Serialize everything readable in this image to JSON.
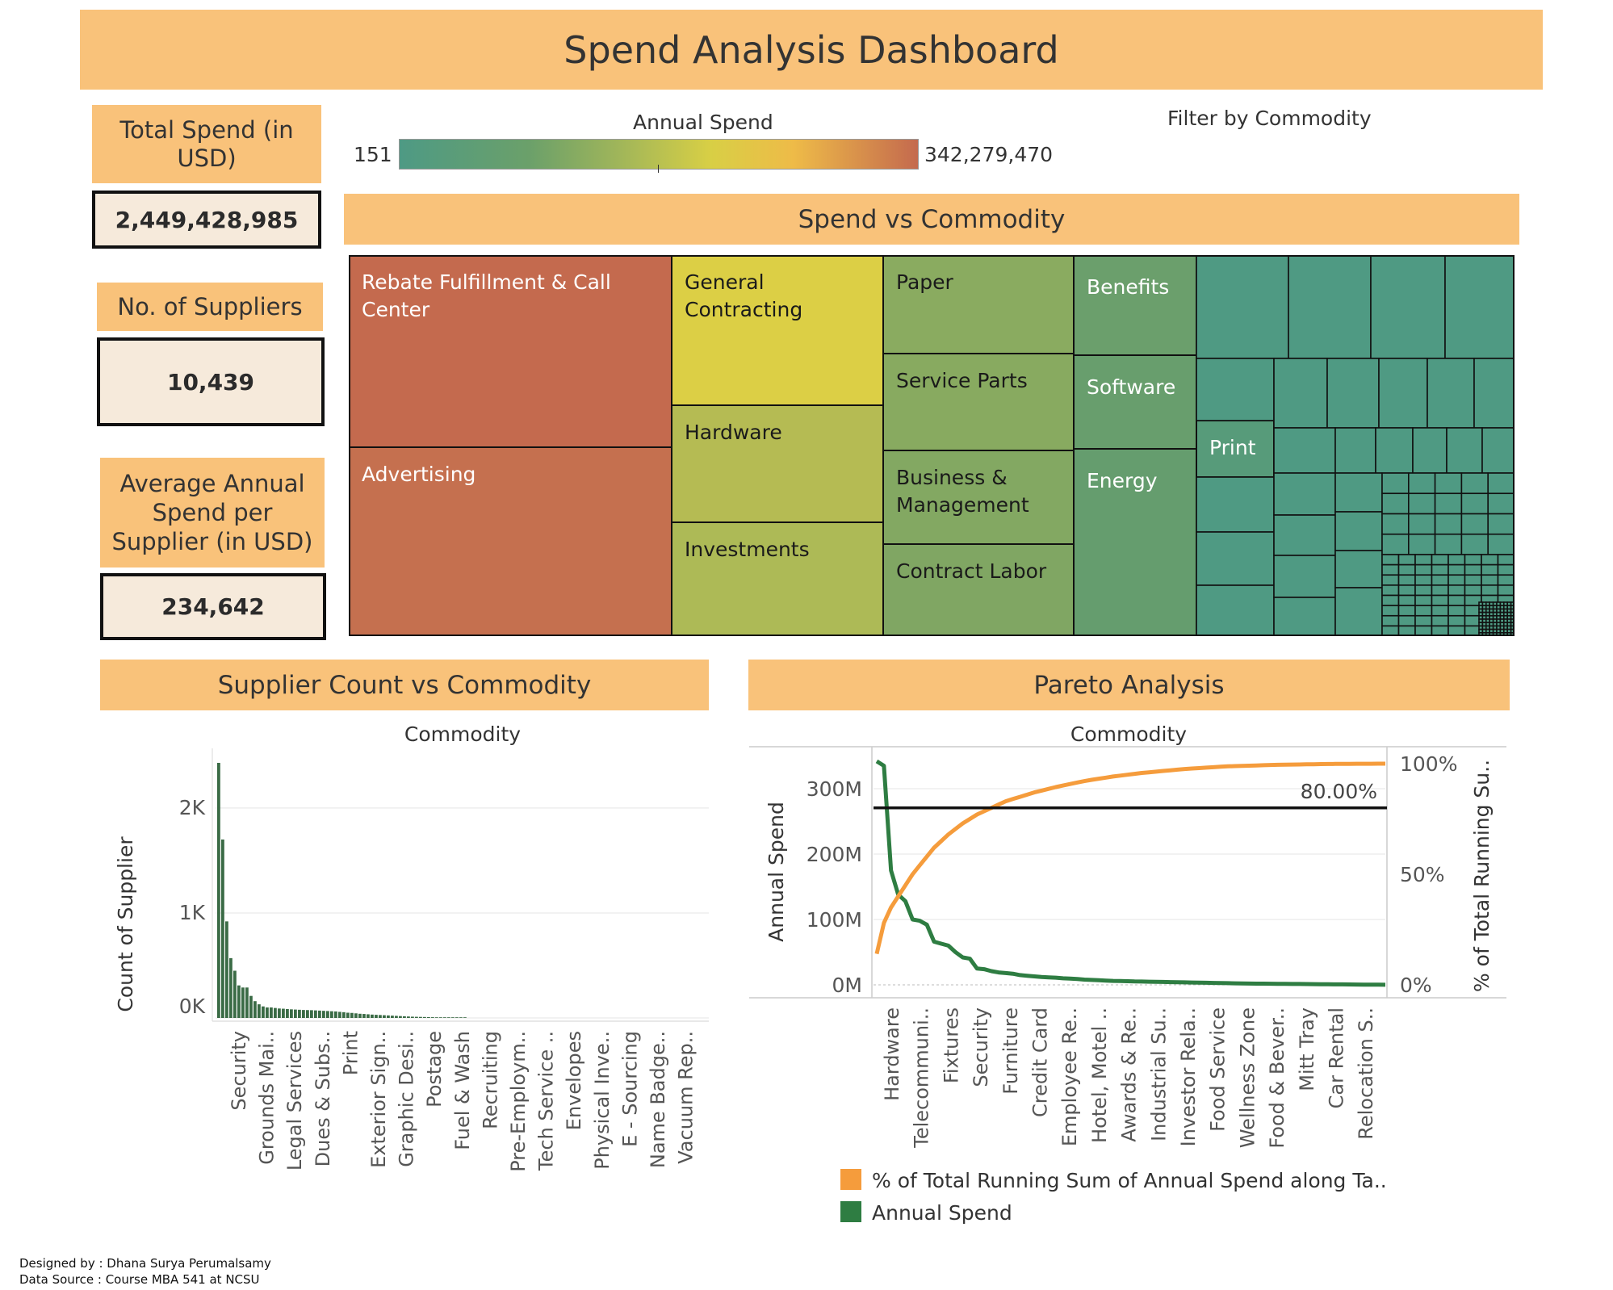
{
  "title": "Spend Analysis Dashboard",
  "kpis": {
    "total_spend_label": "Total Spend (in USD)",
    "total_spend_value": "2,449,428,985",
    "suppliers_label": "No. of Suppliers",
    "suppliers_value": "10,439",
    "avg_label": "Average Annual Spend per Supplier (in USD)",
    "avg_value": "234,642"
  },
  "legend": {
    "title": "Annual Spend",
    "min_label": "151",
    "max_label": "342,279,470",
    "filter_label": "Filter by Commodity",
    "colors": [
      "#4e9a84",
      "#6ba06a",
      "#9fb55a",
      "#d8cf45",
      "#eebb48",
      "#c46a4e"
    ]
  },
  "sections": {
    "treemap_title": "Spend vs Commodity",
    "bar_title": "Supplier Count vs Commodity",
    "pareto_title": "Pareto Analysis"
  },
  "footer": {
    "line1": "Designed by : Dhana Surya Perumalsamy",
    "line2": "Data Source : Course MBA 541 at NCSU"
  },
  "chart_data": [
    {
      "type": "treemap",
      "title": "Spend vs Commodity",
      "color_label": "Annual Spend",
      "labeled_cells": [
        {
          "label": "Rebate Fulfillment & Call Center",
          "color": "#c46a4e"
        },
        {
          "label": "Advertising",
          "color": "#c5704f"
        },
        {
          "label": "General Contracting",
          "color": "#dccf45"
        },
        {
          "label": "Hardware",
          "color": "#b5bb53"
        },
        {
          "label": "Investments",
          "color": "#adba56"
        },
        {
          "label": "Paper",
          "color": "#8aab60"
        },
        {
          "label": "Service Parts",
          "color": "#88aa60"
        },
        {
          "label": "Business & Management",
          "color": "#83a862"
        },
        {
          "label": "Contract Labor",
          "color": "#80a663"
        },
        {
          "label": "Benefits",
          "color": "#6b9f6c"
        },
        {
          "label": "Software",
          "color": "#689e6d"
        },
        {
          "label": "Energy",
          "color": "#659d6e"
        },
        {
          "label": "Print",
          "color": "#579b7a"
        }
      ],
      "unlabeled_color": "#4f9a83"
    },
    {
      "type": "bar",
      "title": "Supplier Count vs Commodity",
      "xlabel": "Commodity",
      "ylabel": "Count of Supplier",
      "yticks": [
        "0K",
        "1K",
        "2K"
      ],
      "ylim": [
        0,
        2500
      ],
      "color": "#3a6b45",
      "tick_categories": [
        "Security",
        "Grounds Mai..",
        "Legal Services",
        "Dues & Subs..",
        "Print",
        "Exterior Sign..",
        "Graphic Desi..",
        "Postage",
        "Fuel & Wash",
        "Recruiting",
        "Pre-Employm..",
        "Tech Service ..",
        "Envelopes",
        "Physical Inve..",
        "E - Sourcing",
        "Name Badge..",
        "Vacuum Rep.."
      ],
      "values": [
        2430,
        1700,
        920,
        570,
        450,
        310,
        290,
        290,
        210,
        160,
        130,
        110,
        100,
        100,
        95,
        90,
        88,
        85,
        82,
        80,
        78,
        76,
        75,
        74,
        72,
        70,
        68,
        66,
        64,
        62,
        58,
        55,
        50,
        48,
        44,
        40,
        38,
        35,
        32,
        30,
        28,
        26,
        24,
        22,
        20,
        18,
        16,
        14,
        12,
        11,
        10,
        9,
        8,
        7,
        6,
        5,
        4,
        3,
        2,
        2,
        1,
        1
      ]
    },
    {
      "type": "line",
      "title": "Pareto Analysis",
      "xlabel": "Commodity",
      "ylabel": "Annual Spend",
      "y2label": "% of Total Running Su..",
      "yticks": [
        "0M",
        "100M",
        "200M",
        "300M"
      ],
      "y2ticks": [
        "0%",
        "50%",
        "100%"
      ],
      "ylim": [
        0,
        340
      ],
      "y2lim": [
        0,
        100
      ],
      "reference_line": {
        "value": 80,
        "label": "80.00%"
      },
      "tick_categories": [
        "Hardware",
        "Telecommuni..",
        "Fixtures",
        "Security",
        "Furniture",
        "Credit Card",
        "Employee Re..",
        "Hotel, Motel ..",
        "Awards & Re..",
        "Industrial Su..",
        "Investor Rela..",
        "Food Service",
        "Wellness Zone",
        "Food & Bever..",
        "Mitt Tray",
        "Car Rental",
        "Relocation S.."
      ],
      "series": [
        {
          "name": "% of Total Running Sum of Annual Spend along Ta..",
          "axis": "right",
          "color": "#f59c3c",
          "values": [
            14,
            28,
            35,
            40,
            45,
            50,
            54,
            58,
            62,
            65,
            68,
            70.5,
            73,
            75,
            77,
            78.5,
            80,
            81.5,
            83,
            84,
            85,
            86,
            87,
            87.8,
            88.6,
            89.4,
            90.1,
            90.8,
            91.5,
            92.1,
            92.7,
            93.2,
            93.7,
            94.2,
            94.6,
            95,
            95.4,
            95.8,
            96.1,
            96.4,
            96.7,
            97,
            97.3,
            97.6,
            97.8,
            98,
            98.2,
            98.4,
            98.6,
            98.8,
            98.9,
            99,
            99.1,
            99.2,
            99.3,
            99.4,
            99.5,
            99.55,
            99.6,
            99.65,
            99.7,
            99.75,
            99.8,
            99.85,
            99.9,
            99.92,
            99.94,
            99.96,
            99.97,
            99.98,
            99.99,
            100
          ]
        },
        {
          "name": "Annual Spend",
          "axis": "left",
          "color": "#2e7d42",
          "values": [
            342,
            335,
            175,
            138,
            128,
            100,
            98,
            92,
            66,
            63,
            60,
            50,
            42,
            40,
            25,
            24,
            21,
            19,
            18,
            17,
            15,
            14,
            13,
            12,
            11.5,
            11,
            10,
            9.5,
            9,
            8,
            7.5,
            7,
            6.5,
            6,
            5.8,
            5.5,
            5.2,
            5,
            4.8,
            4.6,
            4.4,
            4.2,
            4,
            3.8,
            3.6,
            3.4,
            3.2,
            3,
            2.8,
            2.6,
            2.4,
            2.2,
            2,
            1.9,
            1.8,
            1.7,
            1.6,
            1.5,
            1.4,
            1.3,
            1.2,
            1.1,
            1,
            0.9,
            0.8,
            0.7,
            0.6,
            0.5,
            0.4,
            0.3,
            0.2,
            0.1
          ]
        }
      ]
    }
  ]
}
